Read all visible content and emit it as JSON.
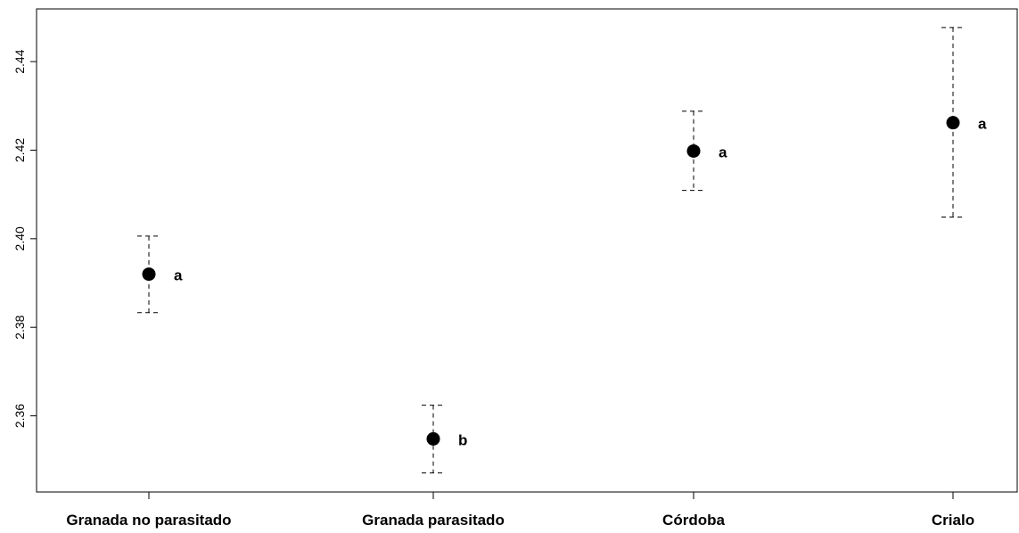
{
  "chart_data": {
    "type": "scatter",
    "error_bars": true,
    "title": "",
    "xlabel": "",
    "ylabel": "",
    "categories": [
      "Granada no parasitado",
      "Granada parasitado",
      "Córdoba",
      "Crialo"
    ],
    "values": [
      2.392,
      2.3548,
      2.4198,
      2.4262
    ],
    "lower": [
      2.3833,
      2.3471,
      2.4109,
      2.4049
    ],
    "upper": [
      2.4006,
      2.3624,
      2.4288,
      2.4477
    ],
    "group_letters": [
      "a",
      "b",
      "a",
      "a"
    ],
    "yticks": [
      2.36,
      2.38,
      2.4,
      2.42,
      2.44
    ],
    "ytick_labels": [
      "2.36",
      "2.38",
      "2.40",
      "2.42",
      "2.44"
    ],
    "ylim": [
      2.3428,
      2.4519
    ],
    "grid": false,
    "legend": "none",
    "point_color": "#000000",
    "errorbar_style": "dashed"
  }
}
